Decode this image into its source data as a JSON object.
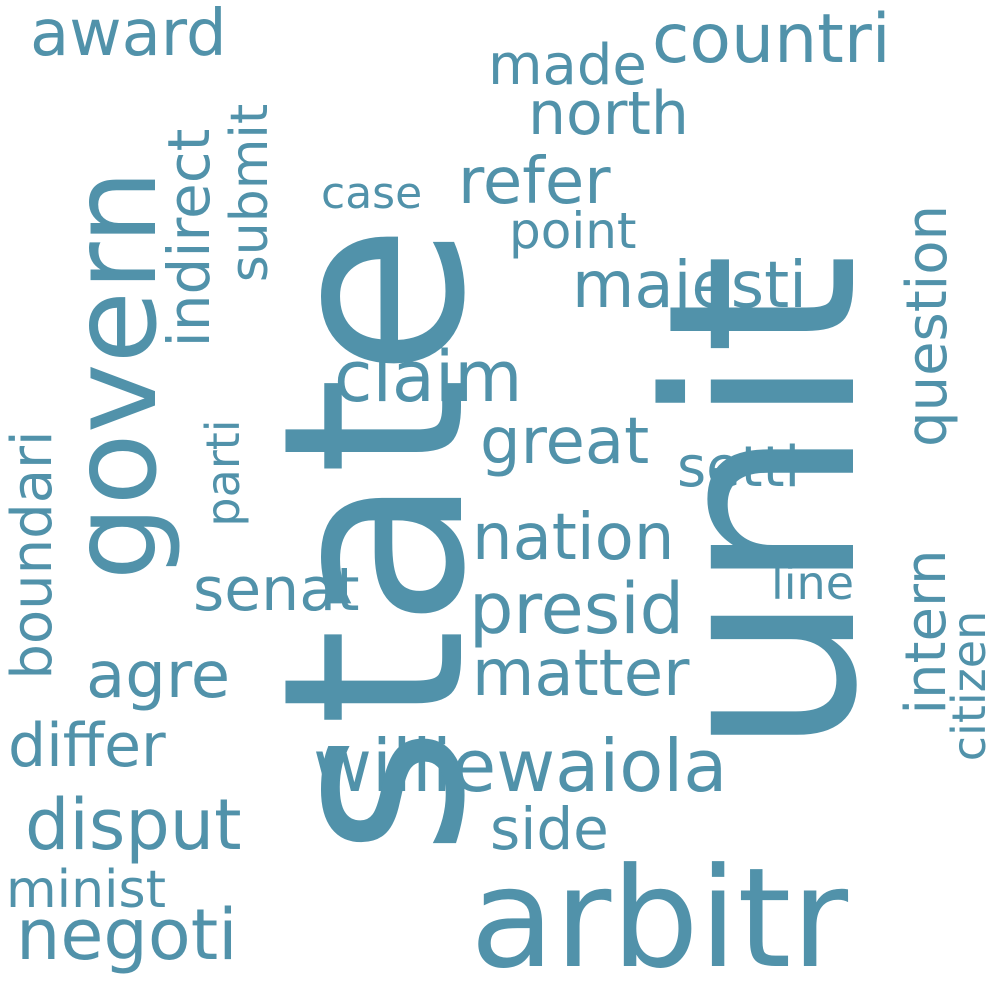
{
  "color": "#5192aa",
  "words": {
    "state": "state",
    "unit": "unit",
    "govern": "govern",
    "arbitr": "arbitr",
    "williewaiola": "williewaiola",
    "countri": "countri",
    "award": "award",
    "made": "made",
    "north": "north",
    "refer": "refer",
    "case": "case",
    "point": "point",
    "majesti": "majesti",
    "claim": "claim",
    "great": "great",
    "settl": "settl",
    "nation": "nation",
    "presid": "presid",
    "matter": "matter",
    "senat": "senat",
    "agre": "agre",
    "differ": "differ",
    "disput": "disput",
    "side": "side",
    "minist": "minist",
    "negoti": "negoti",
    "line": "line",
    "indirect": "indirect",
    "submit": "submit",
    "parti": "parti",
    "boundari": "boundari",
    "question": "question",
    "intern": "intern",
    "citizen": "citizen"
  }
}
